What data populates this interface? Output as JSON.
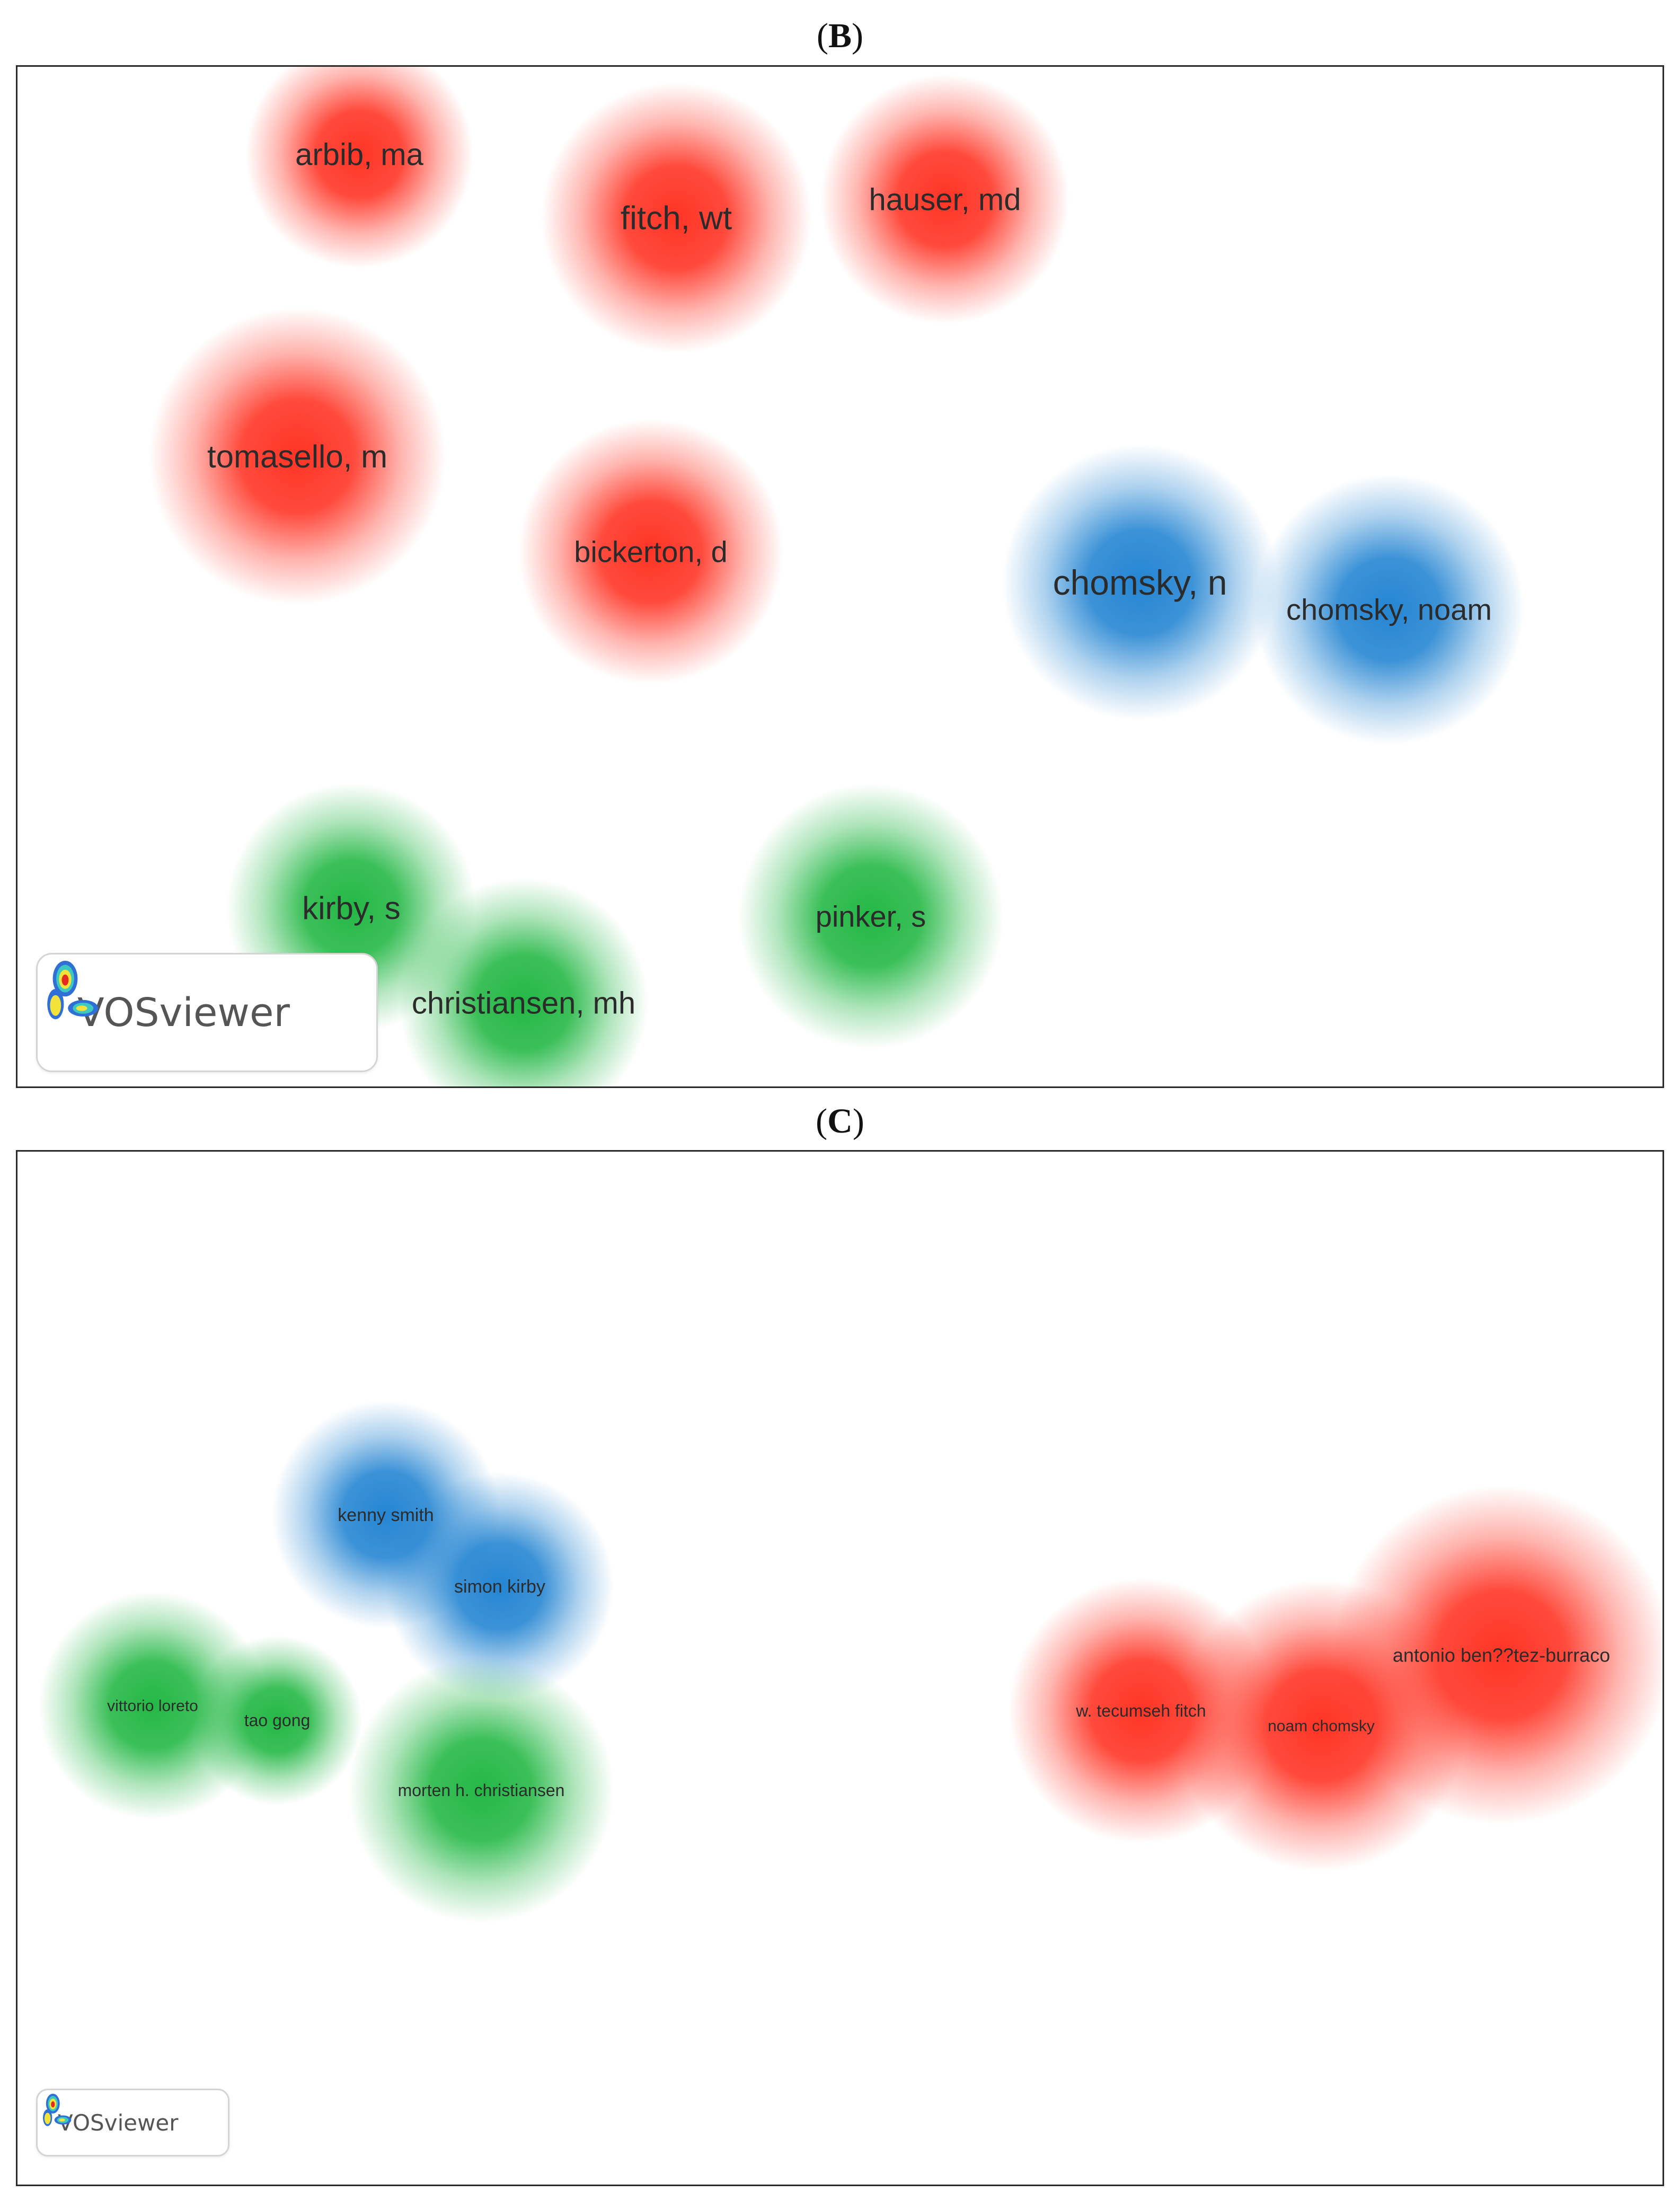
{
  "colors": {
    "red": "#ff2a1a",
    "blue": "#1a7fd0",
    "green": "#19b43c",
    "border": "#2a2a2a"
  },
  "panel_b": {
    "letter": "B",
    "nodes": [
      {
        "label": "arbib, ma",
        "cluster": "red"
      },
      {
        "label": "fitch, wt",
        "cluster": "red"
      },
      {
        "label": "hauser, md",
        "cluster": "red"
      },
      {
        "label": "tomasello, m",
        "cluster": "red"
      },
      {
        "label": "bickerton, d",
        "cluster": "red"
      },
      {
        "label": "chomsky, n",
        "cluster": "blue"
      },
      {
        "label": "chomsky, noam",
        "cluster": "blue"
      },
      {
        "label": "kirby, s",
        "cluster": "green"
      },
      {
        "label": "pinker, s",
        "cluster": "green"
      },
      {
        "label": "christiansen, mh",
        "cluster": "green"
      }
    ],
    "logo": {
      "text": "VOSviewer",
      "icon": "vosviewer-logo-icon"
    }
  },
  "panel_c": {
    "letter": "C",
    "nodes": [
      {
        "label": "kenny smith",
        "cluster": "blue"
      },
      {
        "label": "simon kirby",
        "cluster": "blue"
      },
      {
        "label": "vittorio loreto",
        "cluster": "green"
      },
      {
        "label": "tao gong",
        "cluster": "green"
      },
      {
        "label": "morten h. christiansen",
        "cluster": "green"
      },
      {
        "label": "w. tecumseh fitch",
        "cluster": "red"
      },
      {
        "label": "noam chomsky",
        "cluster": "red"
      },
      {
        "label": "antonio ben??tez-burraco",
        "cluster": "red"
      }
    ],
    "logo": {
      "text": "VOSviewer",
      "icon": "vosviewer-logo-icon"
    }
  }
}
